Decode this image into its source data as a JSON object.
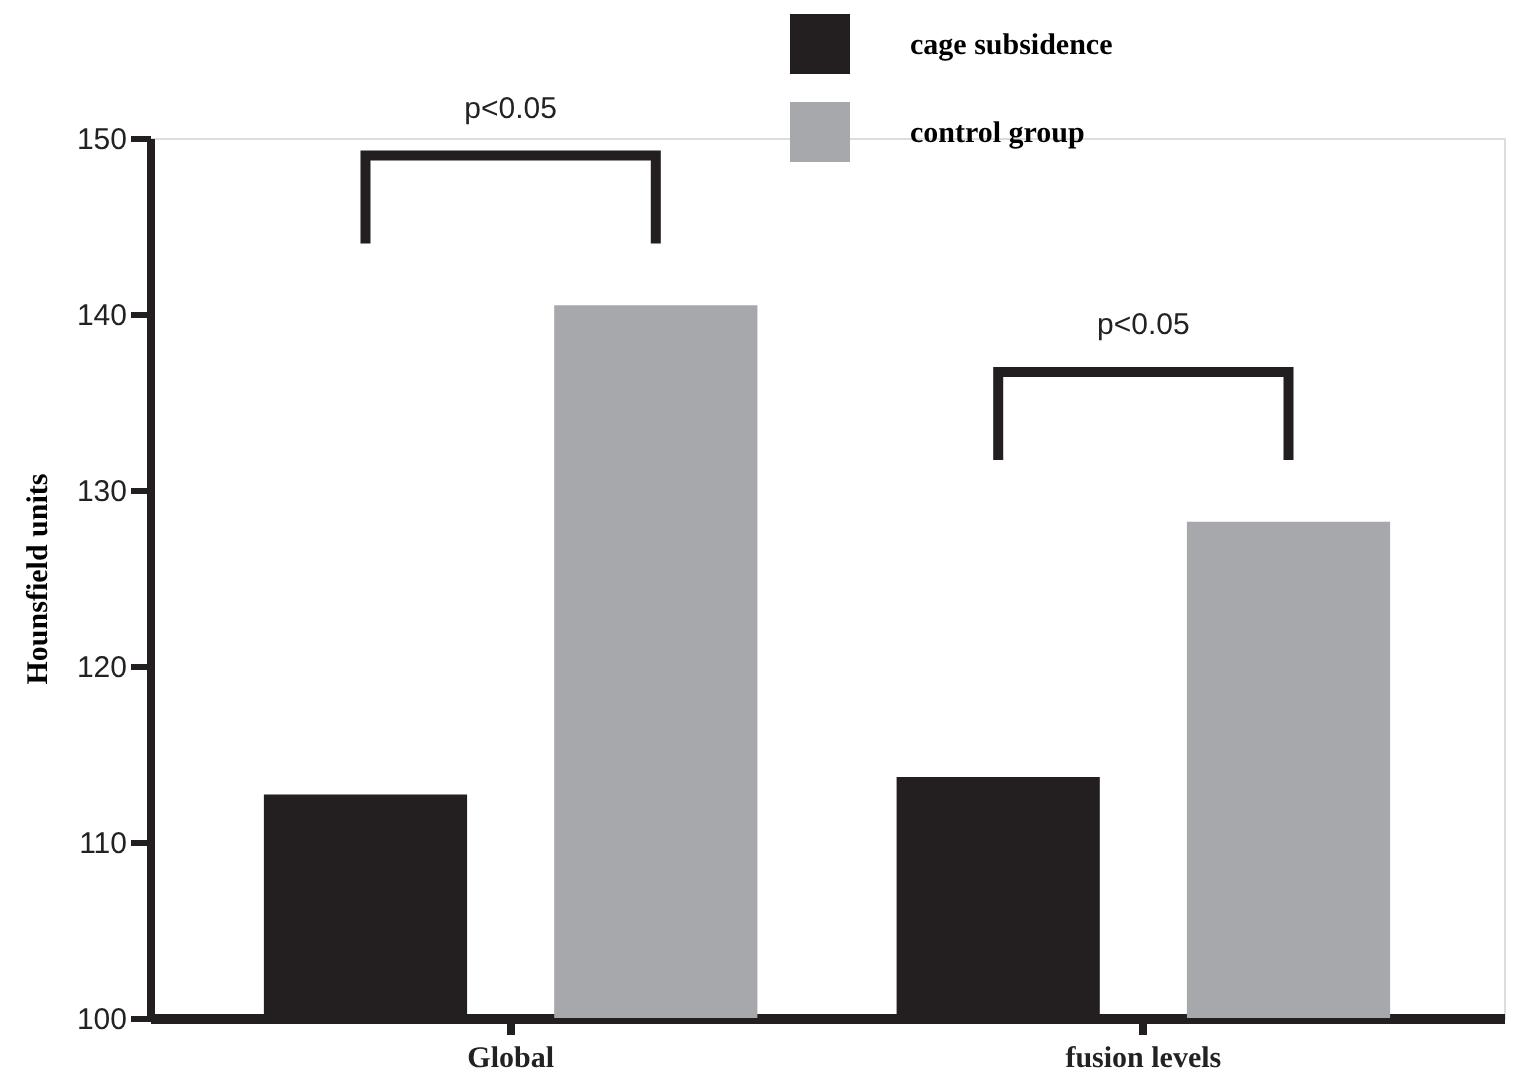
{
  "chart_data": {
    "type": "bar",
    "ylabel": "Hounsfield units",
    "categories": [
      "Global",
      "fusion levels"
    ],
    "series": [
      {
        "name": "cage subsidence",
        "color": "#231f20",
        "values": [
          112.7,
          113.7
        ]
      },
      {
        "name": "control group",
        "color": "#a7a8ab",
        "values": [
          140.5,
          128.2
        ]
      }
    ],
    "ylim": [
      100,
      150
    ],
    "yticks": [
      100,
      110,
      120,
      130,
      140,
      150
    ],
    "grid": false,
    "legend": "top",
    "annotations": [
      "p<0.05",
      "p<0.05"
    ]
  }
}
